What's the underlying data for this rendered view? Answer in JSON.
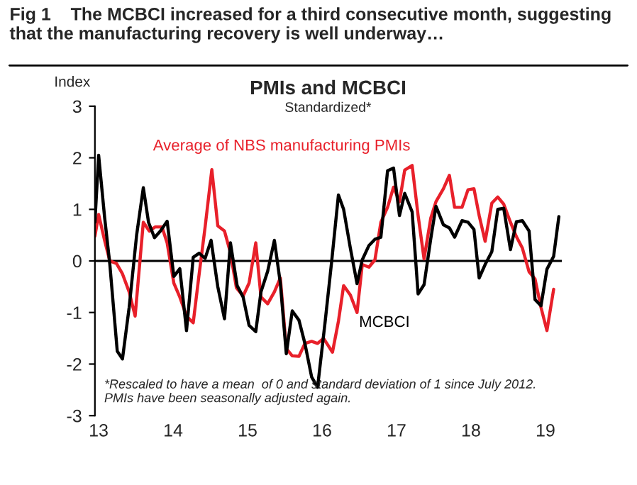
{
  "chart_data": {
    "type": "line",
    "title": "Fig 1    The MCBCI increased for a third consecutive month, suggesting that the manufacturing recovery is well underway…",
    "subtitle": "PMIs and MCBCI",
    "ylabel": "Index",
    "annotations": [
      "Standardized*",
      "*Rescaled to have a mean  of 0 and standard deviation of 1 since July 2012.\nPMIs have been seasonally adjusted again."
    ],
    "series": [
      {
        "name": "Average of NBS manufacturing PMIs",
        "color": "#e8202a",
        "x": [
          2012.95,
          2013.0,
          2013.08,
          2013.15,
          2013.24,
          2013.32,
          2013.41,
          2013.49,
          2013.6,
          2013.68,
          2013.76,
          2013.85,
          2013.92,
          2014.01,
          2014.09,
          2014.18,
          2014.27,
          2014.35,
          2014.43,
          2014.52,
          2014.6,
          2014.69,
          2014.77,
          2014.85,
          2014.94,
          2015.02,
          2015.11,
          2015.18,
          2015.27,
          2015.36,
          2015.44,
          2015.52,
          2015.6,
          2015.69,
          2015.77,
          2015.86,
          2015.94,
          2016.02,
          2016.14,
          2016.22,
          2016.29,
          2016.38,
          2016.47,
          2016.54,
          2016.63,
          2016.71,
          2016.79,
          2016.88,
          2016.96,
          2017.04,
          2017.11,
          2017.21,
          2017.29,
          2017.37,
          2017.46,
          2017.53,
          2017.63,
          2017.71,
          2017.78,
          2017.88,
          2017.96,
          2018.04,
          2018.11,
          2018.19,
          2018.28,
          2018.36,
          2018.44,
          2018.53,
          2018.61,
          2018.69,
          2018.78,
          2018.86,
          2018.94,
          2019.02,
          2019.11
        ],
        "values": [
          0.48,
          0.9,
          0.4,
          0.0,
          -0.05,
          -0.25,
          -0.6,
          -1.07,
          0.75,
          0.58,
          0.66,
          0.66,
          0.35,
          -0.43,
          -0.7,
          -1.07,
          -1.2,
          -0.25,
          0.66,
          1.77,
          0.68,
          0.58,
          0.16,
          -0.52,
          -0.68,
          -0.43,
          0.35,
          -0.7,
          -0.83,
          -0.6,
          -0.33,
          -1.7,
          -1.84,
          -1.85,
          -1.6,
          -1.56,
          -1.6,
          -1.5,
          -1.77,
          -1.17,
          -0.48,
          -0.66,
          -1.0,
          -0.07,
          -0.12,
          0.02,
          0.75,
          1.04,
          1.43,
          1.15,
          1.76,
          1.85,
          0.88,
          0.04,
          0.83,
          1.15,
          1.4,
          1.66,
          1.04,
          1.04,
          1.38,
          1.4,
          0.88,
          0.38,
          1.12,
          1.24,
          1.1,
          0.75,
          0.47,
          0.25,
          -0.21,
          -0.35,
          -0.9,
          -1.35,
          -0.55
        ]
      },
      {
        "name": "MCBCI",
        "color": "#000000",
        "x": [
          2012.95,
          2013.0,
          2013.08,
          2013.15,
          2013.25,
          2013.32,
          2013.41,
          2013.51,
          2013.6,
          2013.67,
          2013.75,
          2013.83,
          2013.92,
          2014.01,
          2014.09,
          2014.18,
          2014.27,
          2014.35,
          2014.43,
          2014.51,
          2014.6,
          2014.69,
          2014.77,
          2014.86,
          2014.94,
          2015.02,
          2015.11,
          2015.18,
          2015.27,
          2015.36,
          2015.44,
          2015.52,
          2015.6,
          2015.69,
          2015.77,
          2015.86,
          2015.94,
          2016.04,
          2016.13,
          2016.22,
          2016.29,
          2016.38,
          2016.47,
          2016.54,
          2016.63,
          2016.71,
          2016.79,
          2016.88,
          2016.96,
          2017.04,
          2017.11,
          2017.21,
          2017.29,
          2017.37,
          2017.46,
          2017.53,
          2017.63,
          2017.71,
          2017.78,
          2017.88,
          2017.96,
          2018.04,
          2018.11,
          2018.19,
          2018.28,
          2018.36,
          2018.44,
          2018.53,
          2018.61,
          2018.69,
          2018.78,
          2018.86,
          2018.94,
          2019.02,
          2019.11,
          2019.18
        ],
        "values": [
          0.75,
          2.05,
          0.85,
          -0.06,
          -1.75,
          -1.9,
          -0.9,
          0.5,
          1.42,
          0.75,
          0.45,
          0.58,
          0.77,
          -0.3,
          -0.15,
          -1.35,
          0.07,
          0.15,
          0.05,
          0.4,
          -0.5,
          -1.12,
          0.35,
          -0.48,
          -0.7,
          -1.25,
          -1.37,
          -0.6,
          -0.2,
          0.4,
          -0.43,
          -1.8,
          -0.97,
          -1.15,
          -1.6,
          -2.25,
          -2.45,
          -1.2,
          0.0,
          1.28,
          1.0,
          0.25,
          -0.44,
          0.02,
          0.3,
          0.42,
          0.46,
          1.75,
          1.8,
          0.88,
          1.31,
          0.95,
          -0.64,
          -0.46,
          0.43,
          1.06,
          0.7,
          0.64,
          0.46,
          0.78,
          0.75,
          0.61,
          -0.33,
          -0.07,
          0.18,
          1.0,
          1.02,
          0.22,
          0.76,
          0.78,
          0.58,
          -0.75,
          -0.87,
          -0.16,
          0.09,
          0.86
        ]
      }
    ],
    "xlim": [
      2012.95,
      2019.22
    ],
    "xticks": [
      {
        "value": 2013,
        "label": "13"
      },
      {
        "value": 2014,
        "label": "14"
      },
      {
        "value": 2015,
        "label": "15"
      },
      {
        "value": 2016,
        "label": "16"
      },
      {
        "value": 2017,
        "label": "17"
      },
      {
        "value": 2018,
        "label": "18"
      },
      {
        "value": 2019,
        "label": "19"
      }
    ],
    "ylim": [
      -3,
      3
    ],
    "yticks": [
      -3,
      -2,
      -1,
      0,
      1,
      2,
      3
    ],
    "ref_lines": [
      {
        "axis": "y",
        "value": 0,
        "color": "#000000"
      }
    ],
    "grid": false,
    "legend": false,
    "line_style": "solid",
    "marker": "none"
  }
}
